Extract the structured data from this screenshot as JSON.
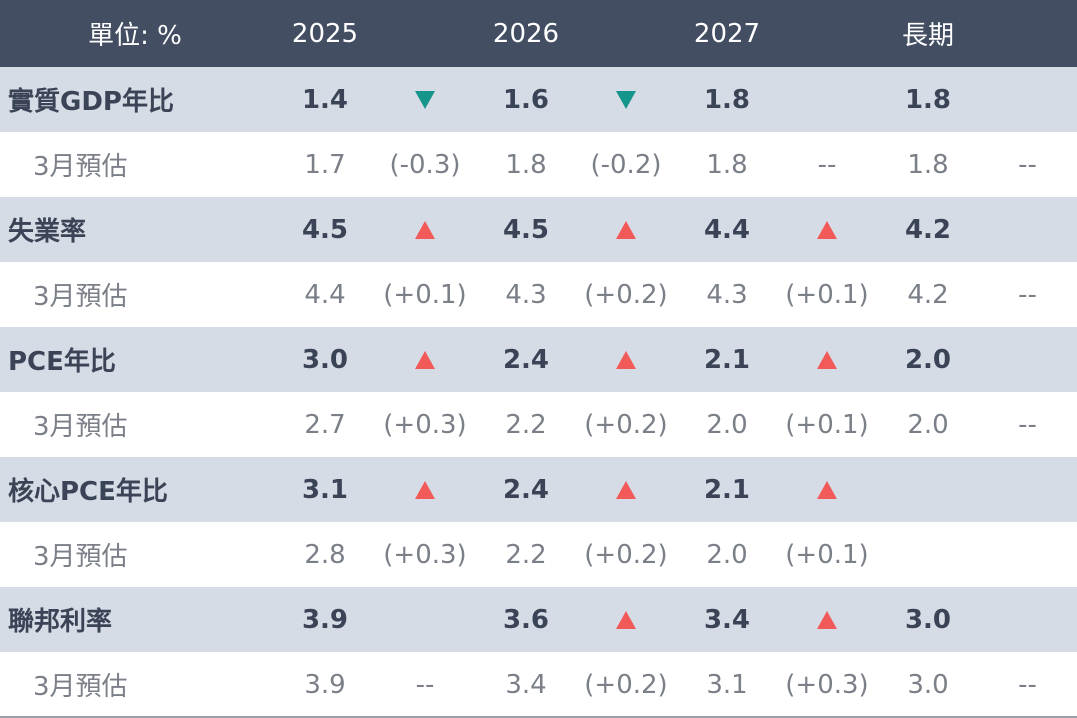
{
  "header": {
    "unit_label": "單位: %",
    "years": [
      "2025",
      "2026",
      "2027",
      "長期"
    ]
  },
  "colors": {
    "up": "#f25a5a",
    "down": "#16958c",
    "header_bg": "#434e63",
    "row_bg": "#d6dce5"
  },
  "rows": [
    {
      "label": "實質GDP年比",
      "values": [
        "1.4",
        "1.6",
        "1.8",
        "1.8"
      ],
      "arrows": [
        "down-triangle-icon",
        "down-triangle-icon",
        "",
        ""
      ]
    },
    {
      "label": "3月預估",
      "values": [
        "1.7",
        "1.8",
        "1.8",
        "1.8"
      ],
      "changes": [
        "(-0.3)",
        "(-0.2)",
        "--",
        "--"
      ]
    },
    {
      "label": "失業率",
      "values": [
        "4.5",
        "4.5",
        "4.4",
        "4.2"
      ],
      "arrows": [
        "up-triangle-icon",
        "up-triangle-icon",
        "up-triangle-icon",
        ""
      ]
    },
    {
      "label": "3月預估",
      "values": [
        "4.4",
        "4.3",
        "4.3",
        "4.2"
      ],
      "changes": [
        "(+0.1)",
        "(+0.2)",
        "(+0.1)",
        "--"
      ]
    },
    {
      "label": "PCE年比",
      "values": [
        "3.0",
        "2.4",
        "2.1",
        "2.0"
      ],
      "arrows": [
        "up-triangle-icon",
        "up-triangle-icon",
        "up-triangle-icon",
        ""
      ]
    },
    {
      "label": "3月預估",
      "values": [
        "2.7",
        "2.2",
        "2.0",
        "2.0"
      ],
      "changes": [
        "(+0.3)",
        "(+0.2)",
        "(+0.1)",
        "--"
      ]
    },
    {
      "label": "核心PCE年比",
      "values": [
        "3.1",
        "2.4",
        "2.1",
        ""
      ],
      "arrows": [
        "up-triangle-icon",
        "up-triangle-icon",
        "up-triangle-icon",
        ""
      ]
    },
    {
      "label": "3月預估",
      "values": [
        "2.8",
        "2.2",
        "2.0",
        ""
      ],
      "changes": [
        "(+0.3)",
        "(+0.2)",
        "(+0.1)",
        ""
      ]
    },
    {
      "label": "聯邦利率",
      "values": [
        "3.9",
        "3.6",
        "3.4",
        "3.0"
      ],
      "arrows": [
        "",
        "up-triangle-icon",
        "up-triangle-icon",
        ""
      ]
    },
    {
      "label": "3月預估",
      "values": [
        "3.9",
        "3.4",
        "3.1",
        "3.0"
      ],
      "changes": [
        "--",
        "(+0.2)",
        "(+0.3)",
        "--"
      ]
    }
  ]
}
